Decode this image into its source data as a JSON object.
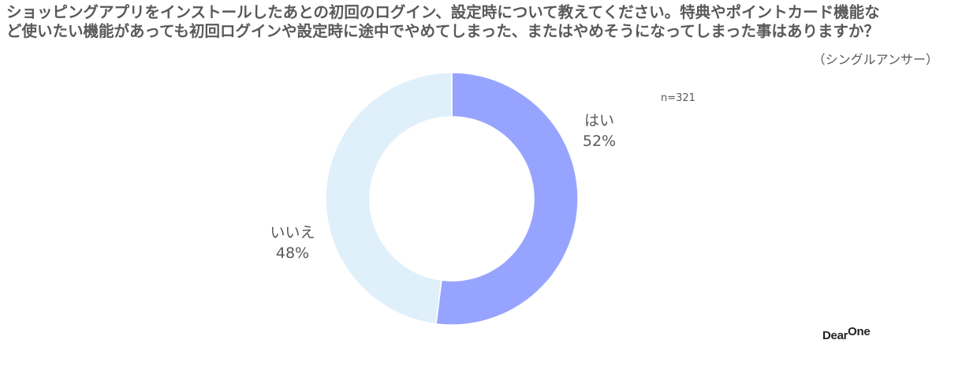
{
  "header": {
    "title_line1": "ショッピングアプリをインストールしたあとの初回のログイン、設定時について教えてください。特典やポイントカード機能な",
    "title_line2": "ど使いたい機能があっても初回ログインや設定時に途中でやめてしまった、またはやめそうになってしまった事はありますか？",
    "answer_type": "（シングルアンサー）"
  },
  "sample_size": "n=321",
  "chart_data": {
    "type": "pie",
    "style": "donut",
    "title": "ショッピングアプリをインストールしたあとの初回のログイン、設定時について教えてください。特典やポイントカード機能など使いたい機能があっても初回ログインや設定時に途中でやめてしまった、またはやめそうになってしまった事はありますか？",
    "slices": [
      {
        "label": "はい",
        "value": 52,
        "value_label": "52%",
        "color": "#97a4ff"
      },
      {
        "label": "いいえ",
        "value": 48,
        "value_label": "48%",
        "color": "#dff0fb"
      }
    ],
    "start_angle": "12 o'clock",
    "direction": "clockwise",
    "legend": "none"
  },
  "logo": {
    "main": "Dear",
    "sup": "One"
  }
}
